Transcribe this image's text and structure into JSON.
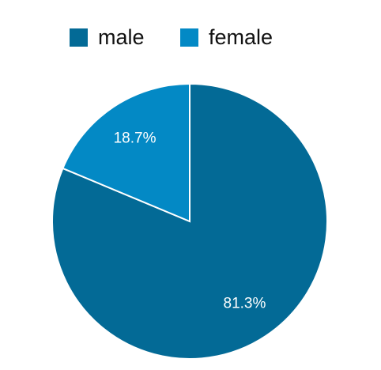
{
  "chart_data": {
    "type": "pie",
    "categories": [
      "male",
      "female"
    ],
    "values": [
      81.3,
      18.7
    ],
    "value_labels": [
      "81.3%",
      "18.7%"
    ],
    "colors": [
      "#036a96",
      "#0389c5"
    ],
    "legend": "top"
  }
}
